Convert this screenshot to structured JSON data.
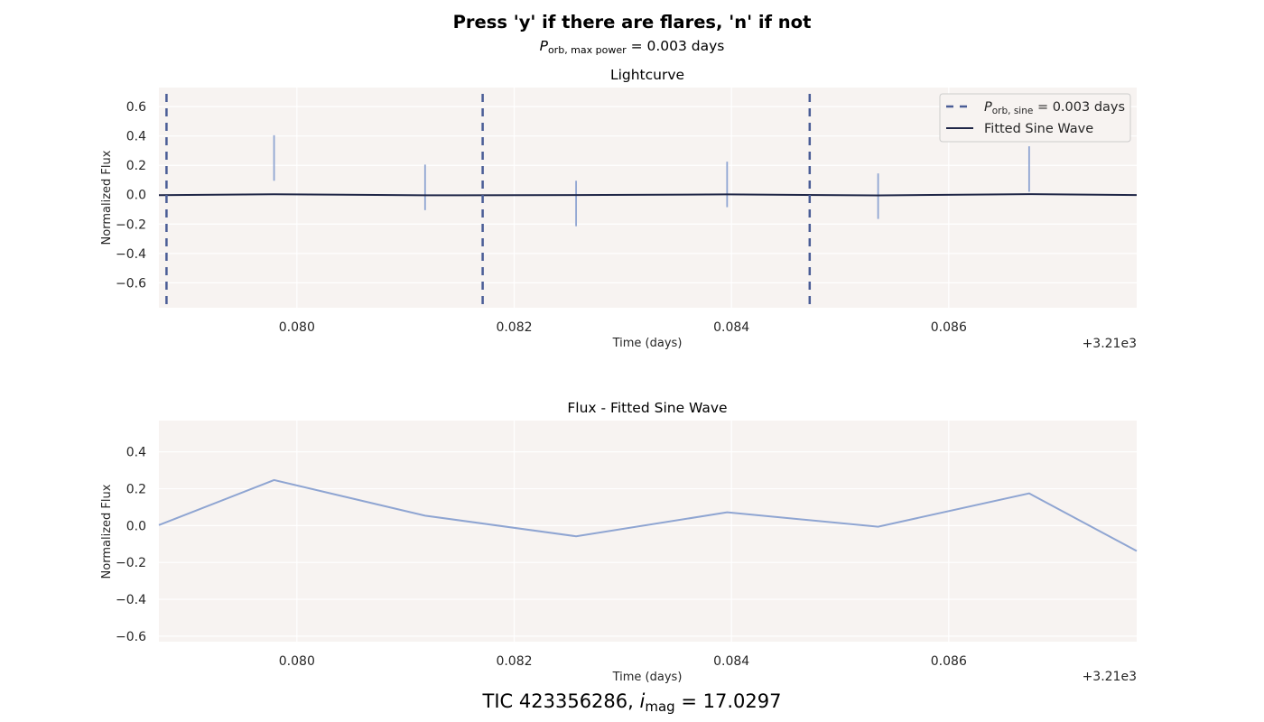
{
  "suptitle": "Press 'y' if there are flares, 'n' if not",
  "subtitle": {
    "prefix": "P",
    "subscript": "orb, max power",
    "value_text": " = 0.003 days"
  },
  "footer": {
    "tic_text": "TIC 423356286, ",
    "var": "i",
    "subscript": "mag",
    "value_text": " = 17.0297"
  },
  "colors": {
    "panel_bg": "#f7f3f1",
    "grid": "#ffffff",
    "data_line": "#8fa5d2",
    "fit_line": "#1f2647",
    "period_line": "#4a5d96"
  },
  "chart_data": [
    {
      "type": "line",
      "title": "Lightcurve",
      "xlabel": "Time (days)",
      "ylabel": "Normalized Flux",
      "x_offset_text": "+3.21e3",
      "xlim": [
        0.07873,
        0.08773
      ],
      "ylim": [
        -0.77,
        0.73
      ],
      "xticks": [
        0.08,
        0.082,
        0.084,
        0.086
      ],
      "xtick_labels": [
        "0.080",
        "0.082",
        "0.084",
        "0.086"
      ],
      "yticks": [
        -0.6,
        -0.4,
        -0.2,
        0.0,
        0.2,
        0.4,
        0.6
      ],
      "ytick_labels": [
        "−0.6",
        "−0.4",
        "−0.2",
        "0.0",
        "0.2",
        "0.4",
        "0.6"
      ],
      "grid": true,
      "legend_position": "top-right",
      "errorbars": {
        "x": [
          0.07979,
          0.08118,
          0.08257,
          0.08396,
          0.08535,
          0.08674
        ],
        "y": [
          0.25,
          0.05,
          -0.06,
          0.07,
          -0.01,
          0.175
        ],
        "yerr": [
          0.155,
          0.155,
          0.155,
          0.155,
          0.155,
          0.155
        ]
      },
      "fitted_sine": {
        "name": "Fitted Sine Wave",
        "x": [
          0.07873,
          0.07979,
          0.08118,
          0.08257,
          0.08396,
          0.08535,
          0.08674,
          0.08773
        ],
        "y": [
          -0.003,
          0.003,
          -0.004,
          -0.002,
          0.002,
          -0.005,
          0.004,
          -0.002
        ]
      },
      "period_lines": {
        "name_prefix": "P",
        "name_subscript": "orb, sine",
        "name_value": " = 0.003 days",
        "x": [
          0.0788,
          0.08171,
          0.08472
        ]
      }
    },
    {
      "type": "line",
      "title": "Flux - Fitted Sine Wave",
      "xlabel": "Time (days)",
      "ylabel": "Normalized Flux",
      "x_offset_text": "+3.21e3",
      "xlim": [
        0.07873,
        0.08773
      ],
      "ylim": [
        -0.63,
        0.57
      ],
      "xticks": [
        0.08,
        0.082,
        0.084,
        0.086
      ],
      "xtick_labels": [
        "0.080",
        "0.082",
        "0.084",
        "0.086"
      ],
      "yticks": [
        -0.6,
        -0.4,
        -0.2,
        0.0,
        0.2,
        0.4
      ],
      "ytick_labels": [
        "−0.6",
        "−0.4",
        "−0.2",
        "0.0",
        "0.2",
        "0.4"
      ],
      "grid": true,
      "series": [
        {
          "x": [
            0.07873,
            0.07979,
            0.08118,
            0.08257,
            0.08396,
            0.08535,
            0.08674,
            0.08773
          ],
          "y": [
            0.003,
            0.247,
            0.054,
            -0.058,
            0.072,
            -0.006,
            0.175,
            -0.138
          ]
        }
      ]
    }
  ]
}
